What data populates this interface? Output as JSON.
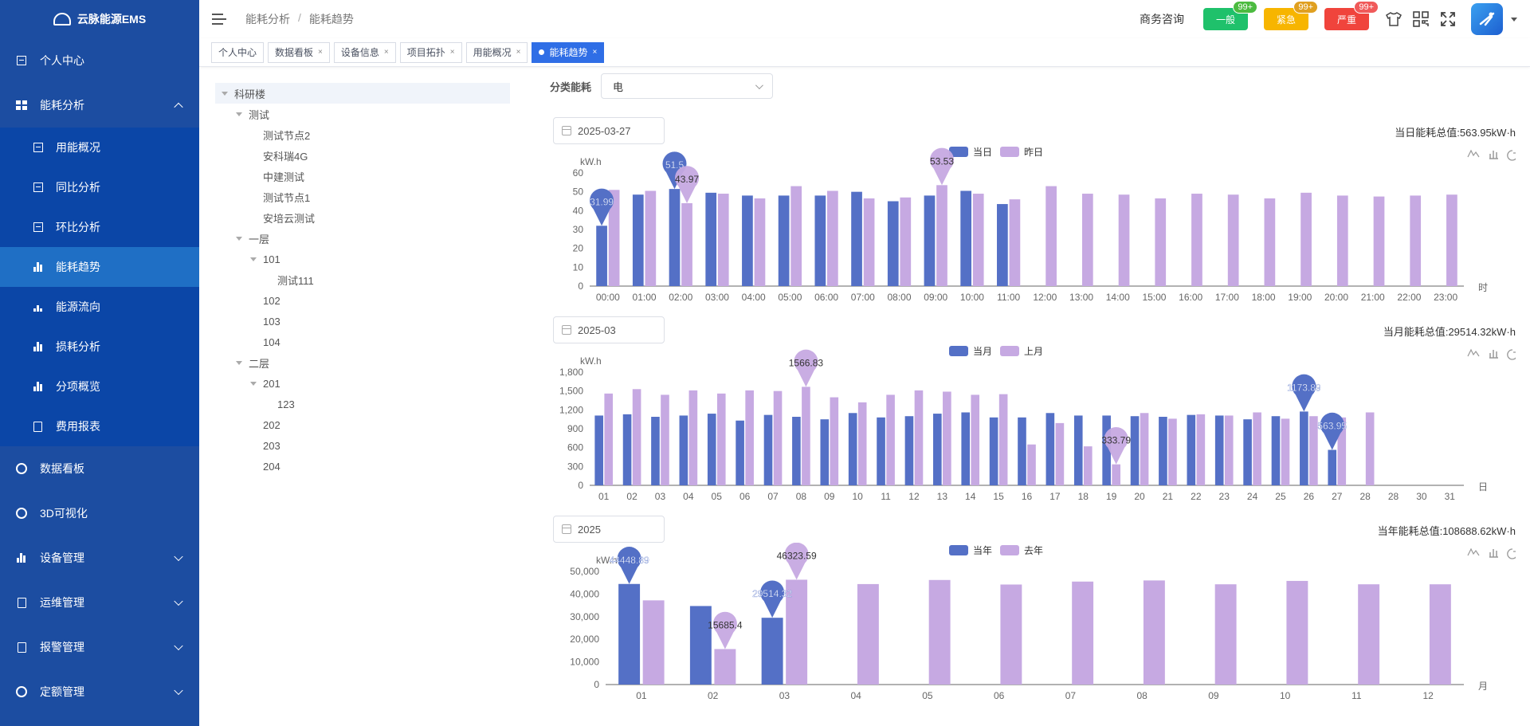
{
  "app": {
    "title": "云脉能源EMS"
  },
  "sidebar": {
    "items": [
      {
        "label": "个人中心",
        "icon": "portrait-icon",
        "children": null
      },
      {
        "label": "能耗分析",
        "icon": "grid-icon",
        "expanded": true,
        "children": [
          {
            "label": "用能概况",
            "icon": "table-icon"
          },
          {
            "label": "同比分析",
            "icon": "table-icon"
          },
          {
            "label": "环比分析",
            "icon": "table-icon"
          },
          {
            "label": "能耗趋势",
            "icon": "bar-chart-icon",
            "active": true
          },
          {
            "label": "能源流向",
            "icon": "org-chart-icon"
          },
          {
            "label": "损耗分析",
            "icon": "bar-chart-icon"
          },
          {
            "label": "分项概览",
            "icon": "bar-chart-icon"
          },
          {
            "label": "费用报表",
            "icon": "document-icon"
          }
        ]
      },
      {
        "label": "数据看板",
        "icon": "dashboard-icon",
        "children": null
      },
      {
        "label": "3D可视化",
        "icon": "cube-icon",
        "children": null
      },
      {
        "label": "设备管理",
        "icon": "bar-chart-icon",
        "collapsible": true
      },
      {
        "label": "运维管理",
        "icon": "tool-icon",
        "collapsible": true
      },
      {
        "label": "报警管理",
        "icon": "alarm-icon",
        "collapsible": true
      },
      {
        "label": "定额管理",
        "icon": "target-icon",
        "collapsible": true
      }
    ]
  },
  "header": {
    "breadcrumb": [
      "能耗分析",
      "能耗趋势"
    ],
    "business": "商务咨询",
    "alarms": [
      {
        "label": "一般",
        "count": "99+",
        "color": "#1fc16b",
        "badge": "#4cbb40"
      },
      {
        "label": "紧急",
        "count": "99+",
        "color": "#f7b500",
        "badge": "#e0a020"
      },
      {
        "label": "严重",
        "count": "99+",
        "color": "#f0443c",
        "badge": "#f05a5a"
      }
    ]
  },
  "tabs": [
    {
      "label": "个人中心",
      "closable": false
    },
    {
      "label": "数据看板",
      "closable": true
    },
    {
      "label": "设备信息",
      "closable": true
    },
    {
      "label": "项目拓扑",
      "closable": true
    },
    {
      "label": "用能概况",
      "closable": true
    },
    {
      "label": "能耗趋势",
      "closable": true,
      "active": true
    }
  ],
  "tree": [
    {
      "label": "科研楼",
      "level": 0,
      "expanded": true,
      "selected": true
    },
    {
      "label": "测试",
      "level": 1,
      "expanded": true
    },
    {
      "label": "测试节点2",
      "level": 2
    },
    {
      "label": "安科瑞4G",
      "level": 2
    },
    {
      "label": "中建测试",
      "level": 2
    },
    {
      "label": "测试节点1",
      "level": 2
    },
    {
      "label": "安培云测试",
      "level": 2
    },
    {
      "label": "一层",
      "level": 1,
      "expanded": true
    },
    {
      "label": "101",
      "level": 2,
      "expanded": true
    },
    {
      "label": "测试111",
      "level": 3
    },
    {
      "label": "102",
      "level": 2
    },
    {
      "label": "103",
      "level": 2
    },
    {
      "label": "104",
      "level": 2
    },
    {
      "label": "二层",
      "level": 1,
      "expanded": true
    },
    {
      "label": "201",
      "level": 2,
      "expanded": true
    },
    {
      "label": "123",
      "level": 3
    },
    {
      "label": "202",
      "level": 2
    },
    {
      "label": "203",
      "level": 2
    },
    {
      "label": "204",
      "level": 2
    }
  ],
  "filter": {
    "label": "分类能耗",
    "value": "电"
  },
  "colors": {
    "current": "#5470c6",
    "previous": "#c6a9e2"
  },
  "chart_data": [
    {
      "type": "bar",
      "date": "2025-03-27",
      "total_label": "当日能耗总值:563.95kW·h",
      "ylabel": "kW.h",
      "xunit": "时",
      "ylim": [
        0,
        60
      ],
      "yticks": [
        "0",
        "10",
        "20",
        "30",
        "40",
        "50",
        "60"
      ],
      "categories": [
        "00:00",
        "01:00",
        "02:00",
        "03:00",
        "04:00",
        "05:00",
        "06:00",
        "07:00",
        "08:00",
        "09:00",
        "10:00",
        "11:00",
        "12:00",
        "13:00",
        "14:00",
        "15:00",
        "16:00",
        "17:00",
        "18:00",
        "19:00",
        "20:00",
        "21:00",
        "22:00",
        "23:00"
      ],
      "legend": [
        "当日",
        "昨日"
      ],
      "series": [
        {
          "name": "当日",
          "values": [
            31.99,
            48.5,
            51.5,
            49.5,
            48,
            48,
            48,
            50,
            45,
            48,
            50.5,
            43.5,
            null,
            null,
            null,
            null,
            null,
            null,
            null,
            null,
            null,
            null,
            null,
            null
          ]
        },
        {
          "name": "昨日",
          "values": [
            51,
            50.5,
            43.97,
            49,
            46.5,
            53,
            50.5,
            46.5,
            47,
            53.53,
            49,
            46,
            53,
            49,
            48.5,
            46.5,
            49,
            48.5,
            46.5,
            49.5,
            48,
            47.5,
            48,
            48.5
          ]
        }
      ],
      "markers": [
        {
          "series": 0,
          "index": 0,
          "label": "31.99"
        },
        {
          "series": 0,
          "index": 2,
          "label": "51.5"
        },
        {
          "series": 1,
          "index": 2,
          "label": "43.97"
        },
        {
          "series": 1,
          "index": 9,
          "label": "53.53"
        }
      ]
    },
    {
      "type": "bar",
      "date": "2025-03",
      "total_label": "当月能耗总值:29514.32kW·h",
      "ylabel": "kW.h",
      "xunit": "日",
      "ylim": [
        0,
        1800
      ],
      "yticks": [
        "0",
        "300",
        "600",
        "900",
        "1,200",
        "1,500",
        "1,800"
      ],
      "categories": [
        "01",
        "02",
        "03",
        "04",
        "05",
        "06",
        "07",
        "08",
        "09",
        "10",
        "11",
        "12",
        "13",
        "14",
        "15",
        "16",
        "17",
        "18",
        "19",
        "20",
        "21",
        "22",
        "23",
        "24",
        "25",
        "26",
        "27",
        "28",
        "28",
        "30",
        "31"
      ],
      "legend": [
        "当月",
        "上月"
      ],
      "series": [
        {
          "name": "当月",
          "values": [
            1110,
            1130,
            1090,
            1110,
            1140,
            1030,
            1120,
            1090,
            1050,
            1150,
            1080,
            1100,
            1140,
            1160,
            1080,
            1080,
            1150,
            1110,
            1110,
            1100,
            1090,
            1120,
            1110,
            1050,
            1100,
            1173.89,
            563.95,
            null,
            null,
            null,
            null
          ]
        },
        {
          "name": "上月",
          "values": [
            1460,
            1530,
            1440,
            1510,
            1460,
            1510,
            1500,
            1566.83,
            1400,
            1320,
            1440,
            1510,
            1490,
            1440,
            1450,
            650,
            990,
            620,
            333.79,
            1150,
            1060,
            1130,
            1110,
            1160,
            1060,
            1100,
            1080,
            1160,
            null,
            null,
            null
          ]
        }
      ],
      "markers": [
        {
          "series": 1,
          "index": 7,
          "label": "1566.83"
        },
        {
          "series": 1,
          "index": 18,
          "label": "333.79"
        },
        {
          "series": 0,
          "index": 25,
          "label": "1173.89"
        },
        {
          "series": 0,
          "index": 26,
          "label": "563.95"
        }
      ]
    },
    {
      "type": "bar",
      "date": "2025",
      "total_label": "当年能耗总值:108688.62kW·h",
      "ylabel": "kW.h",
      "xunit": "月",
      "ylim": [
        0,
        50000
      ],
      "yticks": [
        "0",
        "10,000",
        "20,000",
        "30,000",
        "40,000",
        "50,000"
      ],
      "categories": [
        "01",
        "02",
        "03",
        "04",
        "05",
        "06",
        "07",
        "08",
        "09",
        "10",
        "11",
        "12"
      ],
      "legend": [
        "当年",
        "去年"
      ],
      "series": [
        {
          "name": "当年",
          "values": [
            44448.89,
            34700,
            29514.32,
            null,
            null,
            null,
            null,
            null,
            null,
            null,
            null,
            null
          ]
        },
        {
          "name": "去年",
          "values": [
            37200,
            15685.4,
            46323.59,
            44400,
            46200,
            44200,
            45500,
            46000,
            44300,
            45800,
            44300,
            44300
          ]
        }
      ],
      "markers": [
        {
          "series": 0,
          "index": 0,
          "label": "44448.89"
        },
        {
          "series": 1,
          "index": 1,
          "label": "15685.4"
        },
        {
          "series": 0,
          "index": 2,
          "label": "29514.32"
        },
        {
          "series": 1,
          "index": 2,
          "label": "46323.59"
        }
      ]
    }
  ]
}
